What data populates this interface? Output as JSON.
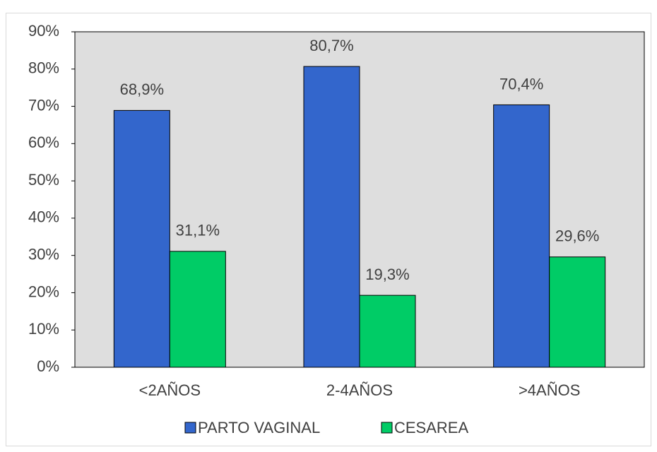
{
  "chart_data": {
    "type": "bar",
    "categories": [
      "<2AÑOS",
      "2-4AÑOS",
      ">4AÑOS"
    ],
    "series": [
      {
        "name": "PARTO VAGINAL",
        "color": "#3366cc",
        "values": [
          68.9,
          80.7,
          70.4
        ],
        "value_labels": [
          "68,9%",
          "80,7%",
          "70,4%"
        ]
      },
      {
        "name": "CESAREA",
        "color": "#00cc66",
        "values": [
          31.1,
          19.3,
          29.6
        ],
        "value_labels": [
          "31,1%",
          "19,3%",
          "29,6%"
        ]
      }
    ],
    "ylim": [
      0,
      90
    ],
    "yticks": [
      {
        "value": 0,
        "label": "0%"
      },
      {
        "value": 10,
        "label": "10%"
      },
      {
        "value": 20,
        "label": "20%"
      },
      {
        "value": 30,
        "label": "30%"
      },
      {
        "value": 40,
        "label": "40%"
      },
      {
        "value": 50,
        "label": "50%"
      },
      {
        "value": 60,
        "label": "60%"
      },
      {
        "value": 70,
        "label": "70%"
      },
      {
        "value": 80,
        "label": "80%"
      },
      {
        "value": 90,
        "label": "90%"
      }
    ],
    "legend": "bottom"
  }
}
